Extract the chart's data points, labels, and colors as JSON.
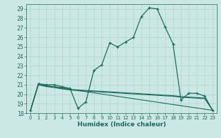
{
  "xlabel": "Humidex (Indice chaleur)",
  "bg_color": "#cce8e5",
  "line_color": "#1a6b5a",
  "grid_color": "#b0d4cf",
  "xlim": [
    -0.5,
    23.5
  ],
  "ylim": [
    18,
    29.5
  ],
  "yticks": [
    18,
    19,
    20,
    21,
    22,
    23,
    24,
    25,
    26,
    27,
    28,
    29
  ],
  "xticks": [
    0,
    1,
    2,
    3,
    4,
    5,
    6,
    7,
    8,
    9,
    10,
    11,
    12,
    13,
    14,
    15,
    16,
    17,
    18,
    19,
    20,
    21,
    22,
    23
  ],
  "series": [
    {
      "x": [
        0,
        1,
        2,
        3,
        4,
        5,
        6,
        7,
        8,
        9,
        10,
        11,
        12,
        13,
        14,
        15,
        16,
        17,
        18,
        19,
        20,
        21,
        22,
        23
      ],
      "y": [
        18.3,
        21.1,
        21.0,
        21.0,
        20.8,
        20.6,
        18.5,
        19.2,
        22.5,
        23.1,
        25.4,
        25.0,
        25.5,
        26.0,
        28.2,
        29.1,
        29.0,
        27.1,
        25.3,
        19.4,
        20.1,
        20.1,
        19.8,
        18.3
      ],
      "marker": "+"
    },
    {
      "x": [
        0,
        1,
        2,
        3,
        4,
        5,
        6,
        7,
        8,
        9,
        10,
        11,
        12,
        13,
        14,
        15,
        16,
        17,
        18,
        19,
        20,
        21,
        22,
        23
      ],
      "y": [
        18.3,
        21.1,
        20.9,
        20.8,
        20.7,
        20.5,
        20.45,
        20.4,
        20.35,
        20.3,
        20.25,
        20.2,
        20.15,
        20.1,
        20.05,
        20.0,
        19.95,
        19.9,
        19.85,
        19.75,
        19.7,
        19.65,
        19.6,
        18.3
      ],
      "marker": null
    },
    {
      "x": [
        0,
        1,
        2,
        3,
        4,
        5,
        6,
        7,
        8,
        9,
        10,
        11,
        12,
        13,
        14,
        15,
        16,
        17,
        18,
        19,
        20,
        21,
        22,
        23
      ],
      "y": [
        18.3,
        21.0,
        20.8,
        20.7,
        20.55,
        20.45,
        20.38,
        20.33,
        20.28,
        20.23,
        20.18,
        20.13,
        20.08,
        20.03,
        19.98,
        19.93,
        19.88,
        19.83,
        19.78,
        19.68,
        19.63,
        19.58,
        19.53,
        18.3
      ],
      "marker": null
    },
    {
      "x": [
        0,
        1,
        23
      ],
      "y": [
        18.3,
        21.0,
        18.3
      ],
      "marker": null
    }
  ]
}
